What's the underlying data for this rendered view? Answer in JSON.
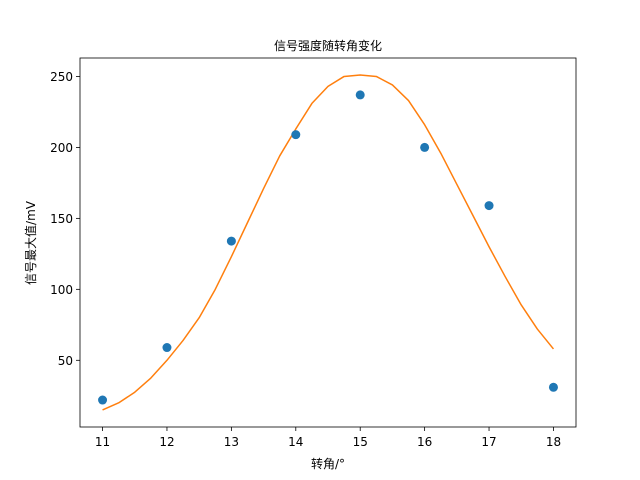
{
  "chart_data": {
    "type": "scatter",
    "title": "信号强度随转角变化",
    "xlabel": "转角/°",
    "ylabel": "信号最大值/mV",
    "xlim": [
      10.65,
      18.35
    ],
    "ylim": [
      3,
      263
    ],
    "x_ticks": [
      11,
      12,
      13,
      14,
      15,
      16,
      17,
      18
    ],
    "y_ticks": [
      50,
      100,
      150,
      200,
      250
    ],
    "grid": false,
    "series": [
      {
        "kind": "scatter",
        "color": "#1f77b4",
        "x": [
          11,
          12,
          13,
          14,
          15,
          16,
          17,
          18
        ],
        "y": [
          22,
          59,
          134,
          209,
          237,
          200,
          159,
          31
        ]
      },
      {
        "kind": "line",
        "color": "#ff7f0e",
        "fit": "gaussian",
        "x": [
          11,
          11.25,
          11.5,
          11.75,
          12,
          12.25,
          12.5,
          12.75,
          13,
          13.25,
          13.5,
          13.75,
          14,
          14.25,
          14.5,
          14.75,
          15,
          15.25,
          15.5,
          15.75,
          16,
          16.25,
          16.5,
          16.75,
          17,
          17.25,
          17.5,
          17.75,
          18
        ],
        "y": [
          15,
          20,
          27.5,
          37.5,
          50,
          64,
          80,
          100,
          123,
          147,
          171,
          194,
          213,
          231,
          243,
          250,
          251,
          250,
          244,
          233,
          216,
          196,
          174,
          152,
          130,
          109,
          89,
          72,
          58
        ]
      }
    ]
  }
}
